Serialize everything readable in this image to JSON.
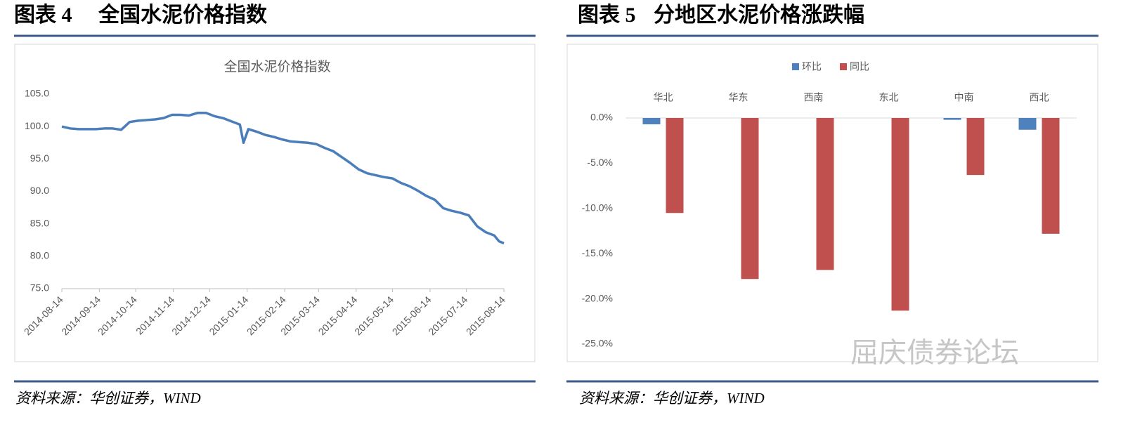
{
  "panels": [
    {
      "figure": "图表 4",
      "title": "全国水泥价格指数",
      "source": "资料来源：华创证券，WIND"
    },
    {
      "figure": "图表 5",
      "title": "分地区水泥价格涨跌幅",
      "source": "资料来源：华创证券，WIND"
    }
  ],
  "watermark": "屈庆债券论坛",
  "chart_data": [
    {
      "type": "line",
      "title": "全国水泥价格指数",
      "color": "#4a7ebb",
      "x": [
        "2014-08-14",
        "2014-08-21",
        "2014-08-28",
        "2014-09-04",
        "2014-09-11",
        "2014-09-18",
        "2014-09-25",
        "2014-10-02",
        "2014-10-09",
        "2014-10-16",
        "2014-10-23",
        "2014-10-30",
        "2014-11-06",
        "2014-11-13",
        "2014-11-20",
        "2014-11-27",
        "2014-12-04",
        "2014-12-11",
        "2014-12-18",
        "2014-12-25",
        "2015-01-01",
        "2015-01-08",
        "2015-01-11",
        "2015-01-15",
        "2015-01-22",
        "2015-01-29",
        "2015-02-05",
        "2015-02-12",
        "2015-02-19",
        "2015-02-26",
        "2015-03-05",
        "2015-03-12",
        "2015-03-19",
        "2015-03-26",
        "2015-04-02",
        "2015-04-09",
        "2015-04-16",
        "2015-04-23",
        "2015-04-30",
        "2015-05-07",
        "2015-05-14",
        "2015-05-21",
        "2015-05-28",
        "2015-06-04",
        "2015-06-11",
        "2015-06-18",
        "2015-06-25",
        "2015-07-02",
        "2015-07-09",
        "2015-07-16",
        "2015-07-23",
        "2015-07-30",
        "2015-08-06",
        "2015-08-10",
        "2015-08-14"
      ],
      "values": [
        100.0,
        99.7,
        99.6,
        99.6,
        99.6,
        99.7,
        99.7,
        99.5,
        100.7,
        100.9,
        101.0,
        101.1,
        101.3,
        101.8,
        101.8,
        101.7,
        102.1,
        102.1,
        101.6,
        101.3,
        100.8,
        100.3,
        97.5,
        99.6,
        99.2,
        98.7,
        98.4,
        98.0,
        97.7,
        97.6,
        97.5,
        97.3,
        96.7,
        96.2,
        95.3,
        94.4,
        93.4,
        92.8,
        92.5,
        92.2,
        92.0,
        91.3,
        90.8,
        90.1,
        89.3,
        88.7,
        87.4,
        87.0,
        86.7,
        86.3,
        84.6,
        83.7,
        83.2,
        82.3,
        82.0
      ],
      "xlim": [
        "2014-08-14",
        "2015-08-14"
      ],
      "xticks": [
        "2014-08-14",
        "2014-09-14",
        "2014-10-14",
        "2014-11-14",
        "2014-12-14",
        "2015-01-14",
        "2015-02-14",
        "2015-03-14",
        "2015-04-14",
        "2015-05-14",
        "2015-06-14",
        "2015-07-14",
        "2015-08-14"
      ],
      "ylim": [
        75,
        105
      ],
      "yticks": [
        {
          "value": 75,
          "label": "75.0"
        },
        {
          "value": 80,
          "label": "80.0"
        },
        {
          "value": 85,
          "label": "85.0"
        },
        {
          "value": 90,
          "label": "90.0"
        },
        {
          "value": 95,
          "label": "95.0"
        },
        {
          "value": 100,
          "label": "100.0"
        },
        {
          "value": 105,
          "label": "105.0"
        }
      ],
      "grid": false
    },
    {
      "type": "bar",
      "categories": [
        "华北",
        "华东",
        "西南",
        "东北",
        "中南",
        "西北"
      ],
      "series": [
        {
          "name": "环比",
          "color": "#4f81bd",
          "values": [
            -0.7,
            0,
            0,
            0,
            -0.2,
            -1.3
          ]
        },
        {
          "name": "同比",
          "color": "#c0504d",
          "values": [
            -10.5,
            -17.8,
            -16.8,
            -21.3,
            -6.3,
            -12.8
          ]
        }
      ],
      "ylim": [
        -25,
        0
      ],
      "yticks": [
        {
          "value": 0,
          "label": "0.0%"
        },
        {
          "value": -5,
          "label": "-5.0%"
        },
        {
          "value": -10,
          "label": "-10.0%"
        },
        {
          "value": -15,
          "label": "-15.0%"
        },
        {
          "value": -20,
          "label": "-20.0%"
        },
        {
          "value": -25,
          "label": "-25.0%"
        }
      ],
      "legend": "top",
      "grid": false
    }
  ]
}
